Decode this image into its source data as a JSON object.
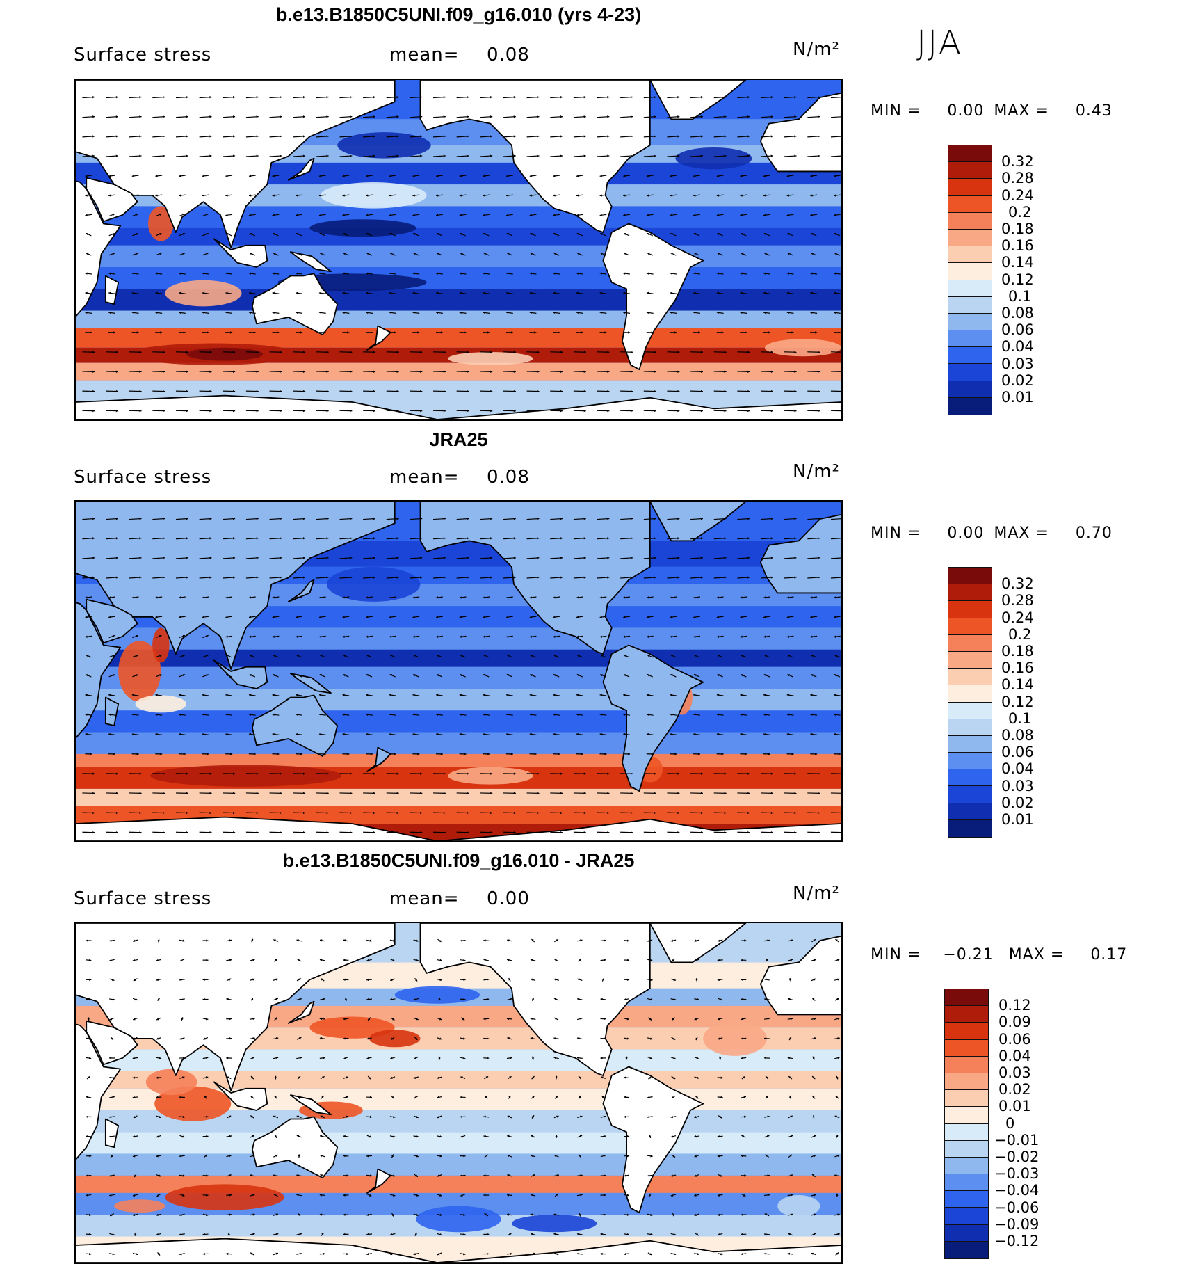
{
  "figure": {
    "season": "JJA"
  },
  "panels": [
    {
      "title": "b.e13.B1850C5UNI.f09_g16.010 (yrs 4-23)",
      "variable": "Surface stress",
      "mean_label": "mean=",
      "mean_value": "0.08",
      "units": "N/m²",
      "min_label": "MIN =",
      "min_value": "0.00",
      "max_label": "MAX =",
      "max_value": "0.43",
      "colorbar": {
        "levels": [
          "0.32",
          "0.28",
          "0.24",
          "0.2",
          "0.18",
          "0.16",
          "0.14",
          "0.12",
          "0.1",
          "0.08",
          "0.06",
          "0.04",
          "0.03",
          "0.02",
          "0.01"
        ],
        "colors": [
          "#7a0b0b",
          "#b01c0a",
          "#d7340f",
          "#ee5526",
          "#f5815a",
          "#f9a886",
          "#fbcdb1",
          "#fdeedf",
          "#d8ebf8",
          "#b9d5f2",
          "#8fb8ef",
          "#5d8ff0",
          "#2e64ee",
          "#1b45d6",
          "#0f2fb0",
          "#081c7a"
        ]
      }
    },
    {
      "title": "JRA25",
      "variable": "Surface stress",
      "mean_label": "mean=",
      "mean_value": "0.08",
      "units": "N/m²",
      "min_label": "MIN =",
      "min_value": "0.00",
      "max_label": "MAX =",
      "max_value": "0.70",
      "colorbar": {
        "levels": [
          "0.32",
          "0.28",
          "0.24",
          "0.2",
          "0.18",
          "0.16",
          "0.14",
          "0.12",
          "0.1",
          "0.08",
          "0.06",
          "0.04",
          "0.03",
          "0.02",
          "0.01"
        ],
        "colors": [
          "#7a0b0b",
          "#b01c0a",
          "#d7340f",
          "#ee5526",
          "#f5815a",
          "#f9a886",
          "#fbcdb1",
          "#fdeedf",
          "#d8ebf8",
          "#b9d5f2",
          "#8fb8ef",
          "#5d8ff0",
          "#2e64ee",
          "#1b45d6",
          "#0f2fb0",
          "#081c7a"
        ]
      }
    },
    {
      "title": "b.e13.B1850C5UNI.f09_g16.010 - JRA25",
      "variable": "Surface stress",
      "mean_label": "mean=",
      "mean_value": "0.00",
      "units": "N/m²",
      "min_label": "MIN =",
      "min_value": "−0.21",
      "max_label": "MAX =",
      "max_value": "0.17",
      "colorbar": {
        "levels": [
          "0.12",
          "0.09",
          "0.06",
          "0.04",
          "0.03",
          "0.02",
          "0.01",
          "0",
          "−0.01",
          "−0.02",
          "−0.03",
          "−0.04",
          "−0.06",
          "−0.09",
          "−0.12"
        ],
        "colors": [
          "#7a0b0b",
          "#b01c0a",
          "#d7340f",
          "#ee5526",
          "#f5815a",
          "#f9a886",
          "#fbcdb1",
          "#fdeedf",
          "#d8ebf8",
          "#b9d5f2",
          "#8fb8ef",
          "#5d8ff0",
          "#2e64ee",
          "#1b45d6",
          "#0f2fb0",
          "#081c7a"
        ]
      }
    }
  ]
}
